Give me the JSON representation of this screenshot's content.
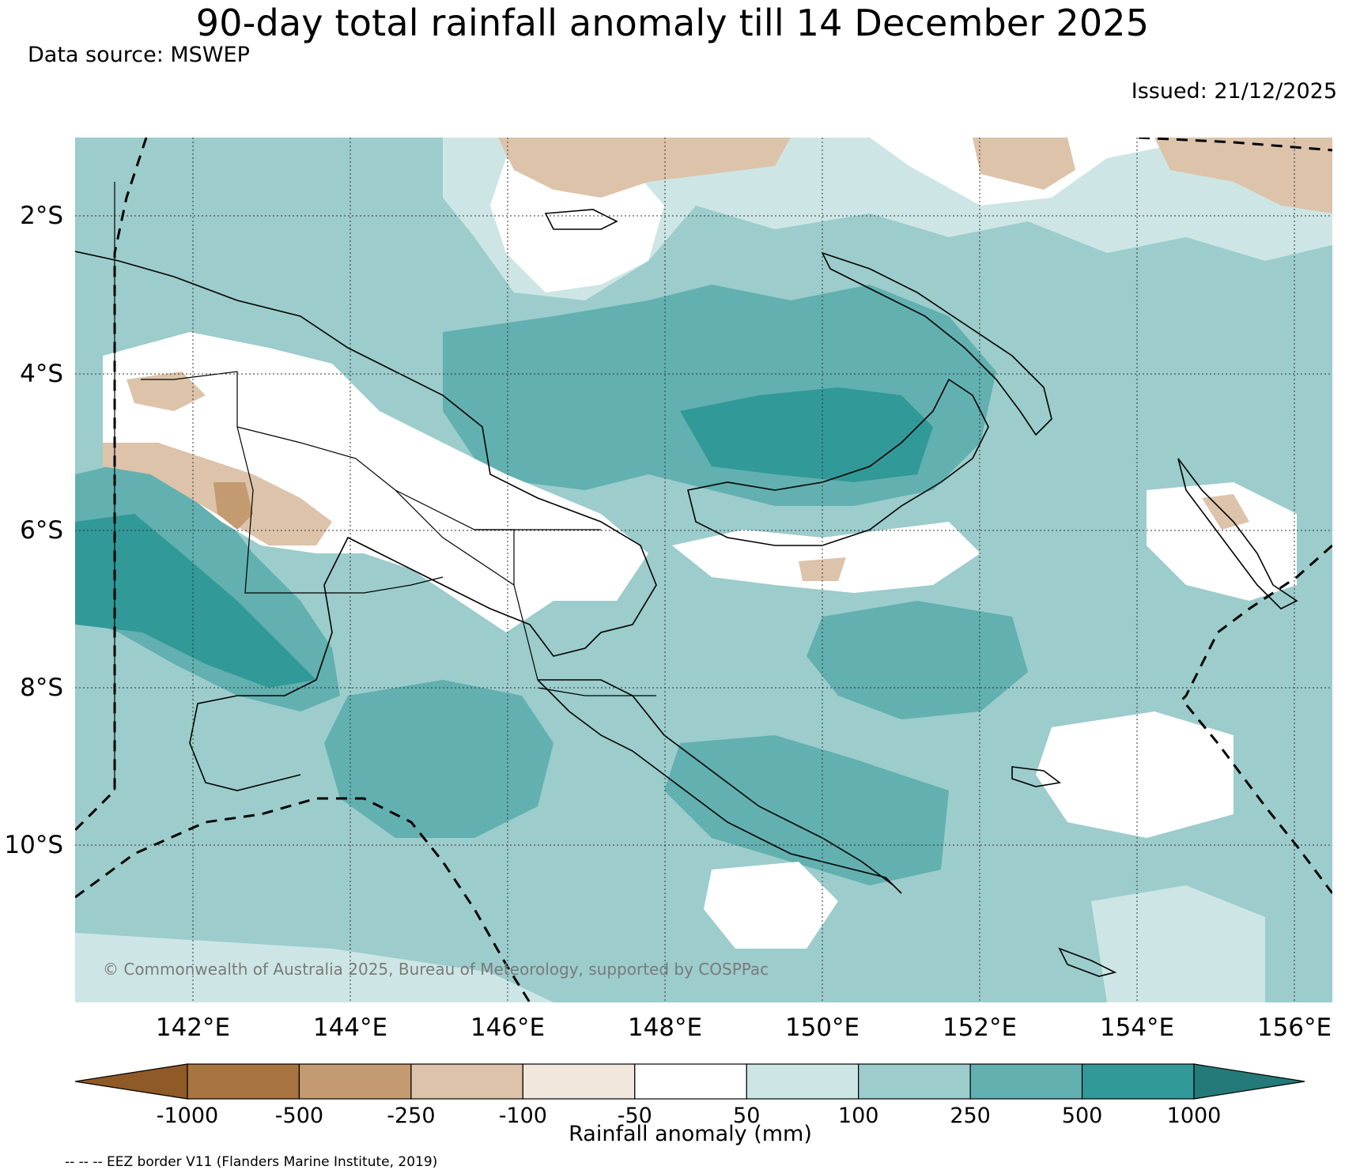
{
  "header": {
    "title": "90-day total rainfall anomaly till 14 December 2025",
    "source": "Data source: MSWEP",
    "issued": "Issued: 21/12/2025"
  },
  "map": {
    "lat_labels": [
      "2°S",
      "4°S",
      "6°S",
      "8°S",
      "10°S"
    ],
    "lon_labels": [
      "142°E",
      "144°E",
      "146°E",
      "148°E",
      "150°E",
      "152°E",
      "154°E",
      "156°E"
    ],
    "copyright": "© Commonwealth of Australia 2025, Bureau of Meteorology, supported by COSPPac"
  },
  "colorbar": {
    "title": "Rainfall anomaly (mm)",
    "ticks": [
      "-1000",
      "-500",
      "-250",
      "-100",
      "-50",
      "50",
      "100",
      "250",
      "500",
      "1000"
    ],
    "colors": [
      "#8f5a27",
      "#a87540",
      "#c49a70",
      "#dcc3aa",
      "#f1e7dd",
      "#ffffff",
      "#cde6e5",
      "#9ccccc",
      "#62b0b0",
      "#319997",
      "#237a78"
    ]
  },
  "footnote": "-- -- -- EEZ border V11 (Flanders Marine Institute, 2019)"
}
